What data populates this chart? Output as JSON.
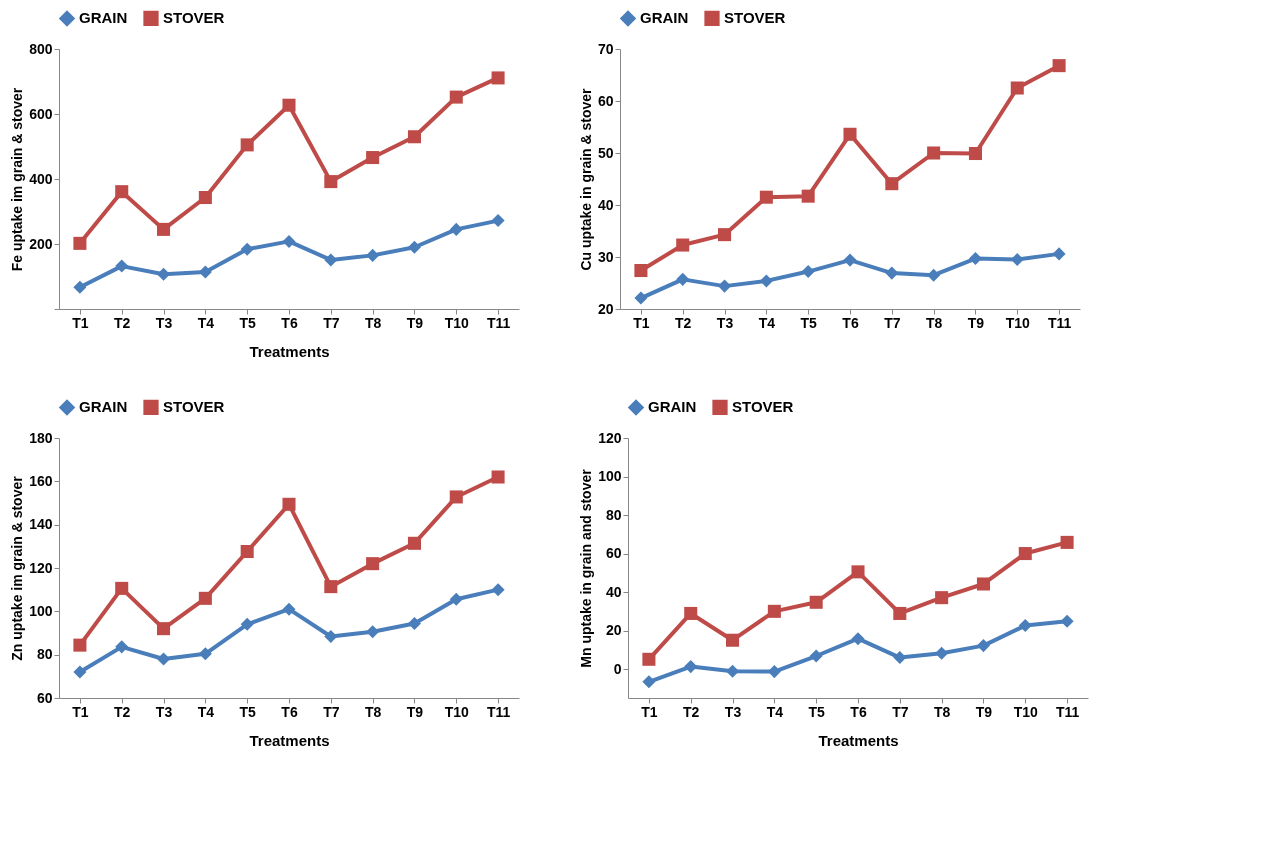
{
  "chart_data": [
    {
      "type": "line",
      "ylabel": "Fe uptake im grain & stover",
      "xlabel": "Treatments",
      "legend": "top",
      "grid": false,
      "categories": [
        "T1",
        "T2",
        "T3",
        "T4",
        "T5",
        "T6",
        "T7",
        "T8",
        "T9",
        "T10",
        "T11"
      ],
      "ylim": [
        0,
        800
      ],
      "yticks": [
        {
          "value": 0,
          "label": null
        },
        200,
        400,
        600,
        800
      ],
      "series": [
        {
          "name": "GRAIN",
          "color": "#4a7ebb",
          "marker": "diamond",
          "values": [
            67,
            132,
            107,
            114,
            184,
            208,
            151,
            165,
            190,
            245,
            272
          ]
        },
        {
          "name": "STOVER",
          "color": "#be4b48",
          "marker": "square",
          "values": [
            202,
            361,
            245,
            343,
            505,
            627,
            392,
            466,
            530,
            652,
            711
          ]
        }
      ]
    },
    {
      "type": "line",
      "ylabel": "Cu uptake in grain & stover",
      "legend": "top",
      "grid": false,
      "categories": [
        "T1",
        "T2",
        "T3",
        "T4",
        "T5",
        "T6",
        "T7",
        "T8",
        "T9",
        "T10",
        "T11"
      ],
      "ylim": [
        20,
        70
      ],
      "yticks": [
        20,
        30,
        40,
        50,
        60,
        70
      ],
      "series": [
        {
          "name": "GRAIN",
          "color": "#4a7ebb",
          "marker": "diamond",
          "values": [
            22.1,
            25.7,
            24.4,
            25.4,
            27.2,
            29.4,
            26.9,
            26.5,
            29.7,
            29.5,
            30.6
          ]
        },
        {
          "name": "STOVER",
          "color": "#be4b48",
          "marker": "square",
          "values": [
            27.4,
            32.3,
            34.3,
            41.5,
            41.7,
            53.6,
            44.1,
            50.0,
            49.9,
            62.5,
            66.8
          ]
        }
      ]
    },
    {
      "type": "line",
      "ylabel": "Zn uptake im grain & stover",
      "xlabel": "Treatments",
      "legend": "top",
      "grid": false,
      "categories": [
        "T1",
        "T2",
        "T3",
        "T4",
        "T5",
        "T6",
        "T7",
        "T8",
        "T9",
        "T10",
        "T11"
      ],
      "ylim": [
        60,
        180
      ],
      "yticks": [
        60,
        80,
        100,
        120,
        140,
        160,
        180
      ],
      "series": [
        {
          "name": "GRAIN",
          "color": "#4a7ebb",
          "marker": "diamond",
          "values": [
            72,
            83.6,
            78,
            80.4,
            94,
            101,
            88.4,
            90.6,
            94.4,
            105.6,
            110
          ]
        },
        {
          "name": "STOVER",
          "color": "#be4b48",
          "marker": "square",
          "values": [
            84.4,
            110.6,
            92,
            106,
            127.6,
            149.4,
            111.4,
            122,
            131.4,
            152.8,
            162
          ]
        }
      ]
    },
    {
      "type": "line",
      "ylabel": "Mn uptake in grain and stover",
      "xlabel": "Treatments",
      "legend": "top",
      "grid": false,
      "categories": [
        "T1",
        "T2",
        "T3",
        "T4",
        "T5",
        "T6",
        "T7",
        "T8",
        "T9",
        "T10",
        "T11"
      ],
      "ylim": [
        -15,
        120
      ],
      "yticks": [
        0,
        20,
        40,
        60,
        80,
        100,
        120
      ],
      "series": [
        {
          "name": "GRAIN",
          "color": "#4a7ebb",
          "marker": "diamond",
          "values": [
            -6.6,
            1.3,
            -1.1,
            -1.3,
            6.8,
            15.8,
            6,
            8.2,
            12.2,
            22.6,
            24.9
          ]
        },
        {
          "name": "STOVER",
          "color": "#be4b48",
          "marker": "square",
          "values": [
            5.1,
            28.9,
            15,
            30,
            34.7,
            50.5,
            28.9,
            37.1,
            44.2,
            60,
            65.8
          ]
        }
      ]
    }
  ]
}
